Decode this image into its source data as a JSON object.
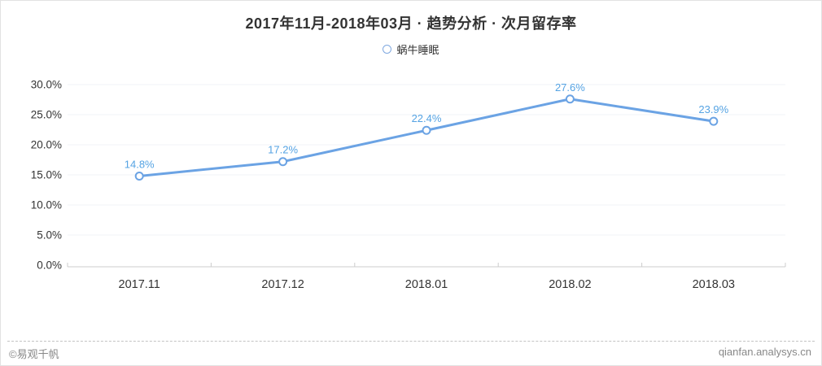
{
  "page": {
    "title": "2017年11月-2018年03月 · 趋势分析 · 次月留存率"
  },
  "legend": {
    "series_label": "蜗牛睡眠"
  },
  "footer": {
    "copyright": "©易观千帆",
    "site": "qianfan.analysys.cn"
  },
  "colors": {
    "line": "#6BA3E4",
    "marker_fill": "#ffffff",
    "data_label": "#55A3E3",
    "grid": "#f0f3f7",
    "axis": "#cccccc",
    "axis_text": "#333333",
    "footer_text": "#888888"
  },
  "chart_data": {
    "type": "line",
    "title": "2017年11月-2018年03月 · 趋势分析 · 次月留存率",
    "categories": [
      "2017.11",
      "2017.12",
      "2018.01",
      "2018.02",
      "2018.03"
    ],
    "series": [
      {
        "name": "蜗牛睡眠",
        "values": [
          14.8,
          17.2,
          22.4,
          27.6,
          23.9
        ]
      }
    ],
    "data_labels": [
      "14.8%",
      "17.2%",
      "22.4%",
      "27.6%",
      "23.9%"
    ],
    "ytick_labels": [
      "0.0%",
      "5.0%",
      "10.0%",
      "15.0%",
      "20.0%",
      "25.0%",
      "30.0%"
    ],
    "ytick_values": [
      0,
      5,
      10,
      15,
      20,
      25,
      30
    ],
    "ylim": [
      0,
      30
    ],
    "xlabel": "",
    "ylabel": "",
    "grid": true,
    "legend_position": "top"
  }
}
